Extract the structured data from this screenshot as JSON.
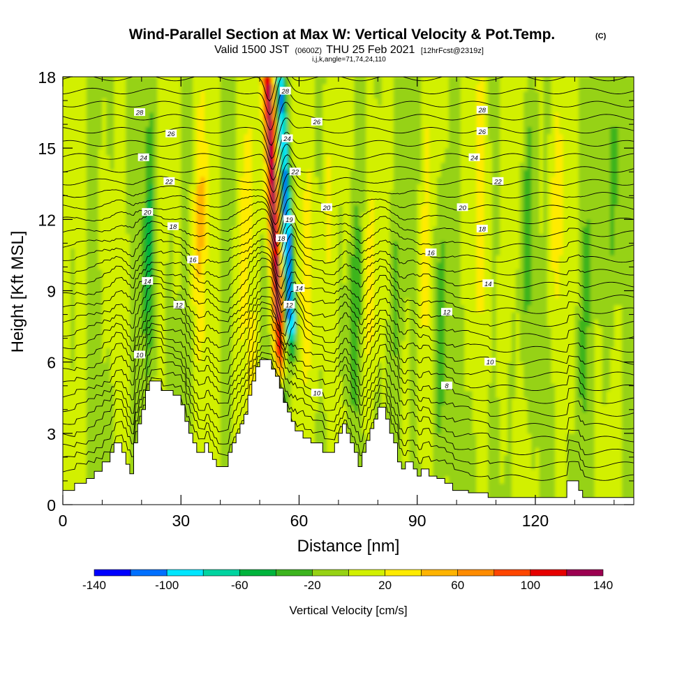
{
  "header": {
    "title": "Wind-Parallel Section at Max W: Vertical Velocity & Pot.Temp.",
    "title_mark": "(C)",
    "sub_valid": "Valid 1500 JST",
    "sub_utc": "(0600Z)",
    "sub_date": "THU 25 Feb 2021",
    "sub_fcst": "[12hrFcst@2319z]",
    "sub_ijk": "i,j,k,angle=71,74,24,110"
  },
  "chart_data": {
    "type": "heatmap",
    "title": "Wind-Parallel Section at Max W: Vertical Velocity & Pot.Temp.",
    "xlabel": "Distance [nm]",
    "ylabel": "Height [Kft MSL]",
    "xlim": [
      0,
      145
    ],
    "ylim": [
      0,
      18
    ],
    "x_ticks": [
      0,
      30,
      60,
      90,
      120
    ],
    "y_ticks": [
      0,
      3,
      6,
      9,
      12,
      15,
      18
    ],
    "colorbar": {
      "label": "Vertical Velocity [cm/s]",
      "boundaries": [
        -140,
        -120,
        -100,
        -80,
        -60,
        -40,
        -20,
        0,
        20,
        40,
        60,
        80,
        100,
        120,
        140
      ],
      "tick_labels": [
        "-140",
        "-100",
        "-60",
        "-20",
        "20",
        "60",
        "100",
        "140"
      ],
      "colors": [
        "#0000ff",
        "#0070ff",
        "#00e6ff",
        "#00d4a0",
        "#00b43c",
        "#3cb41e",
        "#96d214",
        "#d2f000",
        "#ffeb00",
        "#ffb400",
        "#ff8c00",
        "#ff4600",
        "#e60000",
        "#9b0050",
        "#5a0096"
      ]
    },
    "terrain": [
      [
        0,
        0.6
      ],
      [
        3,
        0.6
      ],
      [
        3,
        0.9
      ],
      [
        6,
        0.9
      ],
      [
        6,
        1.1
      ],
      [
        8,
        1.1
      ],
      [
        8,
        1.4
      ],
      [
        10,
        1.4
      ],
      [
        10,
        1.8
      ],
      [
        12,
        1.8
      ],
      [
        12,
        2.2
      ],
      [
        13,
        2.2
      ],
      [
        13,
        2.6
      ],
      [
        15,
        2.6
      ],
      [
        15,
        2.2
      ],
      [
        16,
        2.2
      ],
      [
        16,
        1.7
      ],
      [
        17,
        1.7
      ],
      [
        17,
        1.3
      ],
      [
        18,
        1.3
      ],
      [
        18,
        2.6
      ],
      [
        19,
        2.6
      ],
      [
        19,
        3.4
      ],
      [
        20,
        3.4
      ],
      [
        20,
        4.0
      ],
      [
        21,
        4.0
      ],
      [
        21,
        4.8
      ],
      [
        22,
        4.8
      ],
      [
        22,
        5.2
      ],
      [
        25,
        5.2
      ],
      [
        25,
        4.8
      ],
      [
        28,
        4.8
      ],
      [
        28,
        4.6
      ],
      [
        30,
        4.6
      ],
      [
        30,
        4.2
      ],
      [
        31,
        4.2
      ],
      [
        31,
        3.5
      ],
      [
        32,
        3.5
      ],
      [
        32,
        3.0
      ],
      [
        33,
        3.0
      ],
      [
        33,
        2.6
      ],
      [
        34,
        2.6
      ],
      [
        34,
        2.2
      ],
      [
        36,
        2.2
      ],
      [
        36,
        2.6
      ],
      [
        37,
        2.6
      ],
      [
        37,
        2.2
      ],
      [
        38,
        2.2
      ],
      [
        38,
        1.9
      ],
      [
        39,
        1.9
      ],
      [
        39,
        1.6
      ],
      [
        42,
        1.6
      ],
      [
        42,
        2.2
      ],
      [
        43,
        2.2
      ],
      [
        43,
        2.6
      ],
      [
        44,
        2.6
      ],
      [
        44,
        3.0
      ],
      [
        45,
        3.0
      ],
      [
        45,
        3.4
      ],
      [
        46,
        3.4
      ],
      [
        46,
        3.8
      ],
      [
        47,
        3.8
      ],
      [
        47,
        4.6
      ],
      [
        48,
        4.6
      ],
      [
        48,
        5.2
      ],
      [
        49,
        5.2
      ],
      [
        49,
        5.8
      ],
      [
        50,
        5.8
      ],
      [
        50,
        6.1
      ],
      [
        53,
        6.1
      ],
      [
        53,
        5.7
      ],
      [
        54,
        5.7
      ],
      [
        54,
        5.4
      ],
      [
        55,
        5.4
      ],
      [
        55,
        4.9
      ],
      [
        56,
        4.9
      ],
      [
        56,
        4.3
      ],
      [
        57,
        4.3
      ],
      [
        57,
        3.9
      ],
      [
        58,
        3.9
      ],
      [
        58,
        3.5
      ],
      [
        59,
        3.5
      ],
      [
        59,
        3.1
      ],
      [
        61,
        3.1
      ],
      [
        61,
        2.8
      ],
      [
        63,
        2.8
      ],
      [
        63,
        2.6
      ],
      [
        66,
        2.6
      ],
      [
        66,
        2.2
      ],
      [
        69,
        2.2
      ],
      [
        69,
        2.6
      ],
      [
        70,
        2.6
      ],
      [
        70,
        3.0
      ],
      [
        71,
        3.0
      ],
      [
        71,
        3.4
      ],
      [
        72,
        3.4
      ],
      [
        72,
        3.0
      ],
      [
        73,
        3.0
      ],
      [
        73,
        2.6
      ],
      [
        74,
        2.6
      ],
      [
        74,
        2.2
      ],
      [
        75,
        2.2
      ],
      [
        75,
        1.6
      ],
      [
        76,
        1.6
      ],
      [
        76,
        2.2
      ],
      [
        77,
        2.2
      ],
      [
        77,
        2.7
      ],
      [
        78,
        2.7
      ],
      [
        78,
        3.2
      ],
      [
        79,
        3.2
      ],
      [
        79,
        3.6
      ],
      [
        80,
        3.6
      ],
      [
        80,
        4.1
      ],
      [
        82,
        4.1
      ],
      [
        82,
        3.6
      ],
      [
        83,
        3.6
      ],
      [
        83,
        3.0
      ],
      [
        84,
        3.0
      ],
      [
        84,
        2.6
      ],
      [
        85,
        2.6
      ],
      [
        85,
        1.8
      ],
      [
        86,
        1.8
      ],
      [
        86,
        1.5
      ],
      [
        87,
        1.5
      ],
      [
        87,
        1.8
      ],
      [
        89,
        1.8
      ],
      [
        89,
        1.5
      ],
      [
        90,
        1.5
      ],
      [
        90,
        1.2
      ],
      [
        91,
        1.2
      ],
      [
        91,
        1.5
      ],
      [
        93,
        1.5
      ],
      [
        93,
        1.2
      ],
      [
        95,
        1.2
      ],
      [
        95,
        1.1
      ],
      [
        97,
        1.1
      ],
      [
        97,
        0.9
      ],
      [
        99,
        0.9
      ],
      [
        99,
        0.6
      ],
      [
        103,
        0.6
      ],
      [
        103,
        0.5
      ],
      [
        108,
        0.5
      ],
      [
        108,
        0.3
      ],
      [
        128,
        0.3
      ],
      [
        128,
        1.0
      ],
      [
        131,
        1.0
      ],
      [
        131,
        0.6
      ],
      [
        132,
        0.6
      ],
      [
        132,
        0.3
      ],
      [
        145,
        0.3
      ]
    ],
    "theta_labels": [
      {
        "x": 19.5,
        "y": 16.5,
        "text": "28"
      },
      {
        "x": 27.5,
        "y": 15.6,
        "text": "26"
      },
      {
        "x": 20.5,
        "y": 14.6,
        "text": "24"
      },
      {
        "x": 27,
        "y": 13.6,
        "text": "22"
      },
      {
        "x": 21.5,
        "y": 12.3,
        "text": "20"
      },
      {
        "x": 28,
        "y": 11.7,
        "text": "18"
      },
      {
        "x": 33,
        "y": 10.3,
        "text": "16"
      },
      {
        "x": 21.5,
        "y": 9.4,
        "text": "14"
      },
      {
        "x": 29.5,
        "y": 8.4,
        "text": "12"
      },
      {
        "x": 19.5,
        "y": 6.3,
        "text": "10"
      },
      {
        "x": 56.5,
        "y": 17.4,
        "text": "28"
      },
      {
        "x": 64.5,
        "y": 16.1,
        "text": "26"
      },
      {
        "x": 57,
        "y": 15.4,
        "text": "24"
      },
      {
        "x": 59,
        "y": 14.0,
        "text": "22"
      },
      {
        "x": 67,
        "y": 12.5,
        "text": "20"
      },
      {
        "x": 57.5,
        "y": 12.0,
        "text": "19"
      },
      {
        "x": 55.5,
        "y": 11.2,
        "text": "18"
      },
      {
        "x": 60,
        "y": 9.1,
        "text": "14"
      },
      {
        "x": 57.5,
        "y": 8.4,
        "text": "12"
      },
      {
        "x": 64.5,
        "y": 4.7,
        "text": "10"
      },
      {
        "x": 106.5,
        "y": 16.6,
        "text": "28"
      },
      {
        "x": 106.5,
        "y": 15.7,
        "text": "26"
      },
      {
        "x": 104.5,
        "y": 14.6,
        "text": "24"
      },
      {
        "x": 110.5,
        "y": 13.6,
        "text": "22"
      },
      {
        "x": 101.5,
        "y": 12.5,
        "text": "20"
      },
      {
        "x": 106.5,
        "y": 11.6,
        "text": "18"
      },
      {
        "x": 93.5,
        "y": 10.6,
        "text": "16"
      },
      {
        "x": 108,
        "y": 9.3,
        "text": "14"
      },
      {
        "x": 97.5,
        "y": 8.1,
        "text": "12"
      },
      {
        "x": 108.5,
        "y": 6.0,
        "text": "10"
      },
      {
        "x": 97.5,
        "y": 5.0,
        "text": "8"
      }
    ]
  }
}
